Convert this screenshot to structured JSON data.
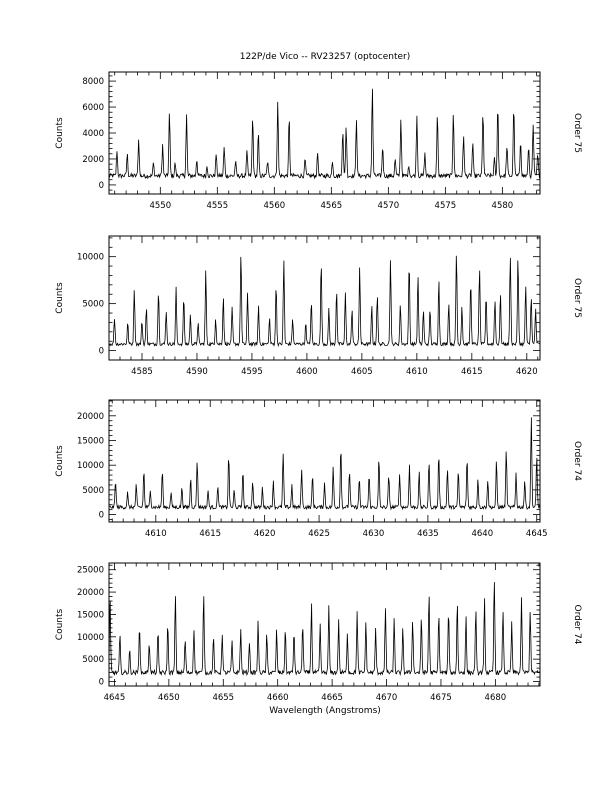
{
  "figure": {
    "title": "122P/de Vico -- RV23257 (optocenter)",
    "xlabel": "Wavelength (Angstroms)"
  },
  "chart_data": [
    {
      "type": "line",
      "ylabel": "Counts",
      "side_label": "Order 75",
      "xlim": [
        4545.5,
        4583.3
      ],
      "ylim": [
        -700,
        8700
      ],
      "xticks": [
        4545,
        4550,
        4555,
        4560,
        4565,
        4570,
        4575,
        4580
      ],
      "xtick_labels": [
        "4545",
        "4550",
        "4555",
        "4560",
        "4565",
        "4570",
        "4575",
        "4580"
      ],
      "yticks": [
        0,
        2000,
        4000,
        6000,
        8000
      ],
      "ytick_labels": [
        "0",
        "2000",
        "4000",
        "6000",
        "8000"
      ],
      "baseline": 700,
      "peaks": [
        [
          4546.2,
          2700
        ],
        [
          4547.1,
          2400
        ],
        [
          4548.1,
          3500
        ],
        [
          4549.4,
          1700
        ],
        [
          4550.2,
          3100
        ],
        [
          4550.8,
          5500
        ],
        [
          4551.3,
          1700
        ],
        [
          4552.3,
          5400
        ],
        [
          4553.2,
          2000
        ],
        [
          4554.1,
          1500
        ],
        [
          4554.9,
          2400
        ],
        [
          4555.6,
          2900
        ],
        [
          4556.6,
          1800
        ],
        [
          4557.6,
          2600
        ],
        [
          4558.1,
          5200
        ],
        [
          4558.6,
          4000
        ],
        [
          4559.4,
          1800
        ],
        [
          4560.3,
          6500
        ],
        [
          4561.3,
          5200
        ],
        [
          4562.7,
          2000
        ],
        [
          4563.8,
          2500
        ],
        [
          4565.1,
          1900
        ],
        [
          4566.0,
          4300
        ],
        [
          4566.3,
          4500
        ],
        [
          4567.2,
          5200
        ],
        [
          4568.6,
          7500
        ],
        [
          4569.5,
          3000
        ],
        [
          4570.6,
          2000
        ],
        [
          4571.1,
          5000
        ],
        [
          4571.8,
          1500
        ],
        [
          4572.5,
          5300
        ],
        [
          4573.2,
          2400
        ],
        [
          4574.3,
          5400
        ],
        [
          4575.7,
          5700
        ],
        [
          4576.6,
          3800
        ],
        [
          4577.4,
          3300
        ],
        [
          4578.3,
          5600
        ],
        [
          4579.3,
          2000
        ],
        [
          4579.6,
          6300
        ],
        [
          4580.4,
          3100
        ],
        [
          4581.0,
          6100
        ],
        [
          4581.6,
          3500
        ],
        [
          4582.3,
          3000
        ],
        [
          4582.7,
          4700
        ],
        [
          4583.1,
          2300
        ]
      ]
    },
    {
      "type": "line",
      "ylabel": "Counts",
      "side_label": "Order 75",
      "xlim": [
        4582.0,
        4621.2
      ],
      "ylim": [
        -1000,
        12200
      ],
      "xticks": [
        4585,
        4590,
        4595,
        4600,
        4605,
        4610,
        4615,
        4620
      ],
      "xtick_labels": [
        "4585",
        "4590",
        "4595",
        "4600",
        "4605",
        "4610",
        "4615",
        "4620"
      ],
      "yticks": [
        0,
        5000,
        10000
      ],
      "ytick_labels": [
        "0",
        "5000",
        "10000"
      ],
      "baseline": 700,
      "peaks": [
        [
          4582.5,
          3500
        ],
        [
          4583.7,
          3000
        ],
        [
          4584.3,
          6600
        ],
        [
          4585.0,
          3200
        ],
        [
          4585.4,
          4500
        ],
        [
          4586.5,
          6400
        ],
        [
          4587.2,
          4300
        ],
        [
          4588.1,
          6700
        ],
        [
          4588.8,
          5800
        ],
        [
          4589.4,
          3800
        ],
        [
          4590.1,
          3000
        ],
        [
          4590.8,
          8600
        ],
        [
          4591.7,
          3500
        ],
        [
          4592.4,
          5800
        ],
        [
          4593.2,
          4500
        ],
        [
          4594.0,
          10600
        ],
        [
          4594.6,
          6000
        ],
        [
          4595.6,
          4800
        ],
        [
          4596.6,
          3500
        ],
        [
          4597.2,
          7000
        ],
        [
          4597.9,
          9600
        ],
        [
          4598.7,
          3500
        ],
        [
          4599.9,
          3000
        ],
        [
          4600.4,
          5200
        ],
        [
          4601.3,
          9600
        ],
        [
          4602.0,
          4500
        ],
        [
          4602.7,
          6600
        ],
        [
          4603.5,
          6200
        ],
        [
          4604.1,
          4500
        ],
        [
          4604.8,
          9000
        ],
        [
          4605.9,
          4800
        ],
        [
          4606.4,
          6000
        ],
        [
          4607.6,
          9900
        ],
        [
          4608.5,
          5000
        ],
        [
          4609.3,
          9500
        ],
        [
          4610.1,
          8100
        ],
        [
          4610.6,
          4400
        ],
        [
          4611.2,
          4500
        ],
        [
          4612.0,
          7600
        ],
        [
          4612.9,
          5200
        ],
        [
          4613.6,
          10600
        ],
        [
          4614.1,
          4900
        ],
        [
          4614.9,
          7400
        ],
        [
          4615.7,
          8900
        ],
        [
          4616.3,
          6000
        ],
        [
          4617.1,
          5500
        ],
        [
          4617.6,
          6000
        ],
        [
          4618.5,
          10300
        ],
        [
          4619.2,
          10000
        ],
        [
          4619.9,
          7000
        ],
        [
          4620.4,
          5900
        ],
        [
          4620.8,
          4500
        ]
      ]
    },
    {
      "type": "line",
      "ylabel": "Counts",
      "side_label": "Order 74",
      "xlim": [
        4605.7,
        4645.3
      ],
      "ylim": [
        -1500,
        23200
      ],
      "xticks": [
        4610,
        4615,
        4620,
        4625,
        4630,
        4635,
        4640,
        4645
      ],
      "xtick_labels": [
        "4610",
        "4615",
        "4620",
        "4625",
        "4630",
        "4635",
        "4640",
        "4645"
      ],
      "yticks": [
        0,
        5000,
        10000,
        15000,
        20000
      ],
      "ytick_labels": [
        "0",
        "5000",
        "10000",
        "15000",
        "20000"
      ],
      "baseline": 1500,
      "peaks": [
        [
          4606.3,
          7000
        ],
        [
          4607.4,
          4500
        ],
        [
          4608.2,
          6000
        ],
        [
          4608.9,
          9000
        ],
        [
          4609.5,
          5000
        ],
        [
          4610.6,
          9000
        ],
        [
          4611.4,
          4500
        ],
        [
          4612.4,
          5500
        ],
        [
          4613.2,
          7500
        ],
        [
          4613.8,
          11000
        ],
        [
          4614.8,
          5000
        ],
        [
          4615.7,
          6000
        ],
        [
          4616.7,
          12000
        ],
        [
          4617.2,
          5000
        ],
        [
          4618.0,
          9000
        ],
        [
          4618.9,
          7000
        ],
        [
          4619.8,
          5500
        ],
        [
          4620.8,
          7000
        ],
        [
          4621.7,
          12500
        ],
        [
          4622.5,
          6000
        ],
        [
          4623.4,
          9500
        ],
        [
          4624.4,
          8000
        ],
        [
          4625.5,
          6500
        ],
        [
          4626.3,
          9500
        ],
        [
          4627.0,
          14000
        ],
        [
          4627.8,
          9000
        ],
        [
          4628.7,
          7500
        ],
        [
          4629.6,
          8000
        ],
        [
          4630.5,
          11500
        ],
        [
          4631.4,
          8000
        ],
        [
          4632.4,
          8500
        ],
        [
          4633.3,
          10000
        ],
        [
          4634.2,
          8500
        ],
        [
          4635.1,
          11000
        ],
        [
          4636.0,
          12500
        ],
        [
          4636.8,
          9500
        ],
        [
          4637.8,
          9000
        ],
        [
          4638.6,
          11500
        ],
        [
          4639.6,
          7500
        ],
        [
          4640.5,
          7000
        ],
        [
          4641.3,
          11000
        ],
        [
          4642.2,
          13000
        ],
        [
          4643.1,
          8500
        ],
        [
          4643.9,
          7000
        ],
        [
          4644.5,
          20000
        ],
        [
          4645.0,
          12000
        ]
      ]
    },
    {
      "type": "line",
      "ylabel": "Counts",
      "side_label": "Order 74",
      "xlim": [
        4644.5,
        4684.1
      ],
      "ylim": [
        -1000,
        26500
      ],
      "xticks": [
        4645,
        4650,
        4655,
        4660,
        4665,
        4670,
        4675,
        4680
      ],
      "xtick_labels": [
        "4645",
        "4650",
        "4655",
        "4660",
        "4665",
        "4670",
        "4675",
        "4680"
      ],
      "yticks": [
        0,
        5000,
        10000,
        15000,
        20000,
        25000
      ],
      "ytick_labels": [
        "0",
        "5000",
        "10000",
        "15000",
        "20000",
        "25000"
      ],
      "baseline": 2000,
      "peaks": [
        [
          4644.6,
          18000
        ],
        [
          4645.5,
          10500
        ],
        [
          4646.4,
          7000
        ],
        [
          4647.3,
          13000
        ],
        [
          4648.2,
          9000
        ],
        [
          4649.0,
          11000
        ],
        [
          4649.9,
          13000
        ],
        [
          4650.6,
          19500
        ],
        [
          4651.5,
          9500
        ],
        [
          4652.3,
          12000
        ],
        [
          4653.2,
          20000
        ],
        [
          4654.1,
          10000
        ],
        [
          4654.9,
          11000
        ],
        [
          4655.8,
          9000
        ],
        [
          4656.6,
          11500
        ],
        [
          4657.4,
          9000
        ],
        [
          4658.2,
          13500
        ],
        [
          4659.0,
          10500
        ],
        [
          4659.9,
          11500
        ],
        [
          4660.7,
          12000
        ],
        [
          4661.5,
          11500
        ],
        [
          4662.3,
          13000
        ],
        [
          4663.1,
          17500
        ],
        [
          4663.9,
          12500
        ],
        [
          4664.7,
          17000
        ],
        [
          4665.6,
          13500
        ],
        [
          4666.4,
          11000
        ],
        [
          4667.3,
          15500
        ],
        [
          4668.1,
          13000
        ],
        [
          4669.0,
          12000
        ],
        [
          4669.9,
          16000
        ],
        [
          4670.7,
          14000
        ],
        [
          4671.5,
          12000
        ],
        [
          4672.4,
          14000
        ],
        [
          4673.2,
          14500
        ],
        [
          4673.9,
          20000
        ],
        [
          4674.8,
          15500
        ],
        [
          4675.7,
          16000
        ],
        [
          4676.5,
          18000
        ],
        [
          4677.3,
          14500
        ],
        [
          4678.2,
          16000
        ],
        [
          4679.0,
          18500
        ],
        [
          4679.9,
          23000
        ],
        [
          4680.7,
          16000
        ],
        [
          4681.5,
          13000
        ],
        [
          4682.4,
          18500
        ],
        [
          4683.2,
          16000
        ]
      ]
    }
  ]
}
